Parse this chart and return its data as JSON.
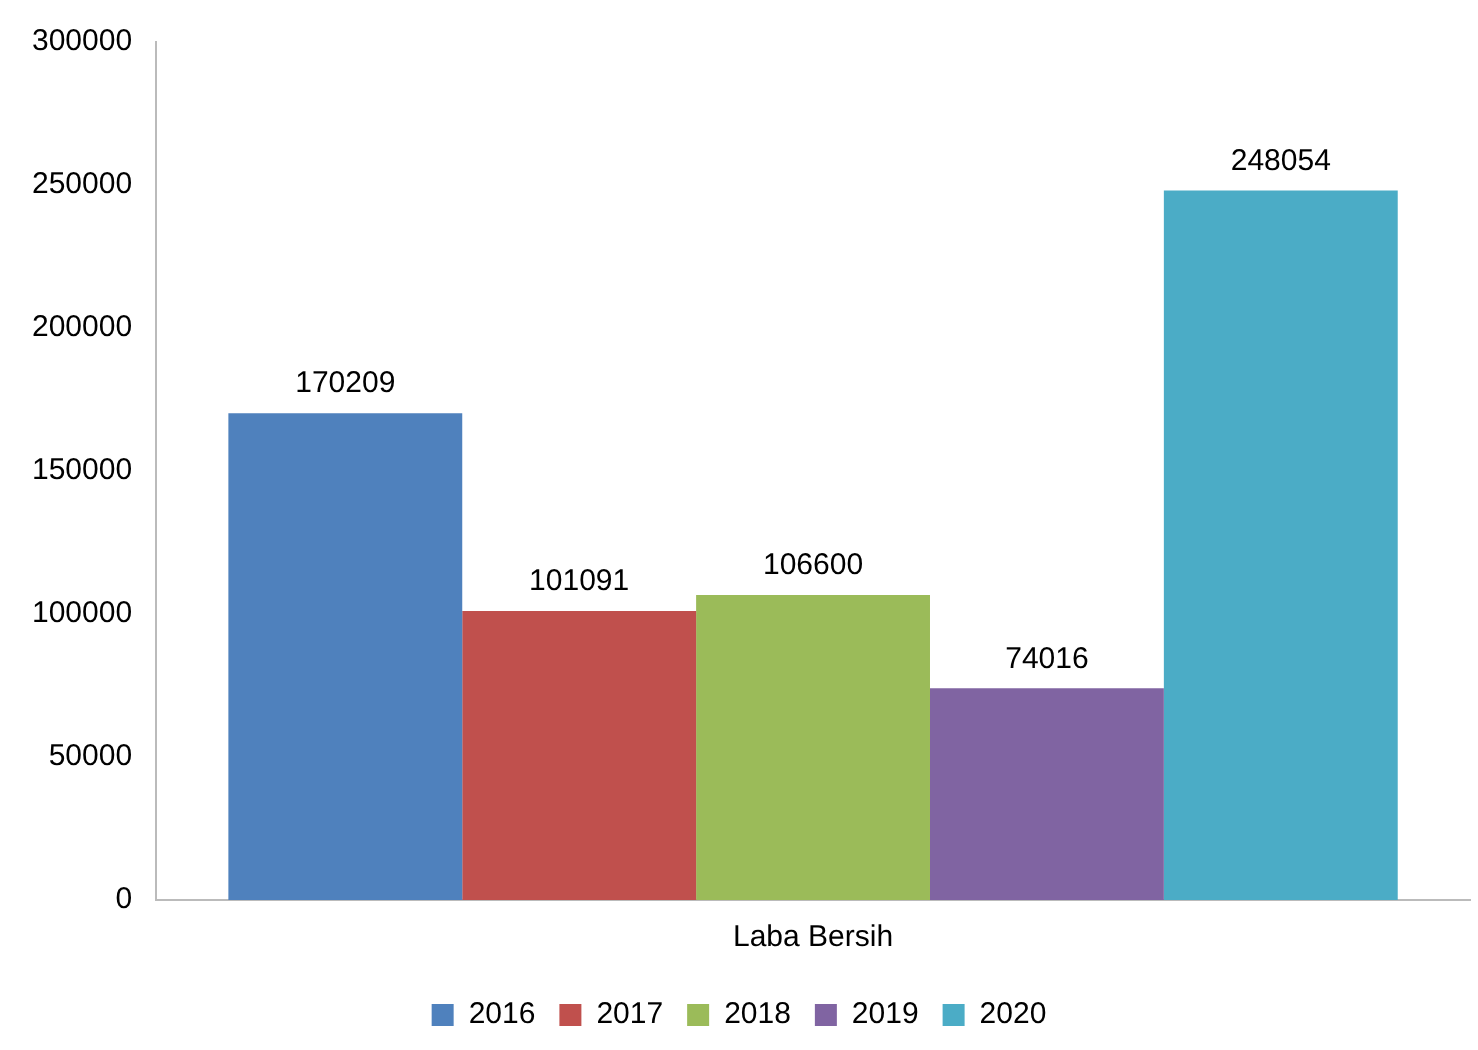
{
  "chart_data": {
    "type": "bar",
    "categories": [
      "Laba Bersih"
    ],
    "series": [
      {
        "name": "2016",
        "color": "#4f81bd",
        "values": [
          170209
        ]
      },
      {
        "name": "2017",
        "color": "#c0504d",
        "values": [
          101091
        ]
      },
      {
        "name": "2018",
        "color": "#9bbb59",
        "values": [
          106600
        ]
      },
      {
        "name": "2019",
        "color": "#8064a2",
        "values": [
          74016
        ]
      },
      {
        "name": "2020",
        "color": "#4bacc6",
        "values": [
          248054
        ]
      }
    ],
    "ylim": [
      0,
      300000
    ],
    "yticks": [
      0,
      50000,
      100000,
      150000,
      200000,
      250000,
      300000
    ],
    "grid": false,
    "legend": "bottom",
    "data_labels": true
  }
}
